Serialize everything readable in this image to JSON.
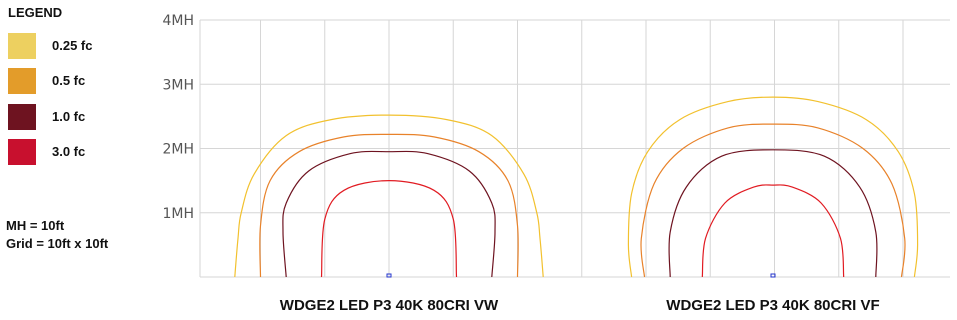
{
  "legend": {
    "title": "LEGEND",
    "items": [
      {
        "label": "0.25 fc",
        "color": "#EDD060"
      },
      {
        "label": "0.5 fc",
        "color": "#E39C2A"
      },
      {
        "label": "1.0 fc",
        "color": "#6E1320"
      },
      {
        "label": "3.0 fc",
        "color": "#C8102E"
      }
    ]
  },
  "notes": {
    "mh": "MH = 10ft",
    "grid": "Grid = 10ft x 10ft"
  },
  "chart_data": {
    "type": "isofootcandle contour",
    "y_ticks": [
      "4MH",
      "3MH",
      "2MH",
      "1MH"
    ],
    "ylim": [
      0,
      4
    ],
    "xlim_per_panel": [
      -3,
      3
    ],
    "grid": true,
    "legend_position": "left",
    "line_colors": {
      "0.25 fc": "#F2C12E",
      "0.5 fc": "#E8822A",
      "1.0 fc": "#6E1320",
      "3.0 fc": "#E11B22"
    },
    "fixture_marker_color": "#2233CC",
    "panels": [
      {
        "title": "WDGE2 LED P3 40K 80CRI VW",
        "contours": [
          {
            "level": "0.25 fc",
            "points": [
              [
                -2.4,
                0
              ],
              [
                -2.35,
                0.6
              ],
              [
                -2.3,
                1.0
              ],
              [
                -2.1,
                1.6
              ],
              [
                -1.6,
                2.2
              ],
              [
                -0.9,
                2.45
              ],
              [
                0,
                2.52
              ],
              [
                0.9,
                2.45
              ],
              [
                1.6,
                2.2
              ],
              [
                2.1,
                1.6
              ],
              [
                2.3,
                1.0
              ],
              [
                2.35,
                0.6
              ],
              [
                2.4,
                0
              ]
            ]
          },
          {
            "level": "0.5 fc",
            "points": [
              [
                -2.0,
                0
              ],
              [
                -2.0,
                0.8
              ],
              [
                -1.85,
                1.5
              ],
              [
                -1.4,
                1.95
              ],
              [
                -0.7,
                2.18
              ],
              [
                0,
                2.22
              ],
              [
                0.7,
                2.18
              ],
              [
                1.4,
                1.95
              ],
              [
                1.85,
                1.5
              ],
              [
                2.0,
                0.8
              ],
              [
                2.0,
                0
              ]
            ]
          },
          {
            "level": "1.0 fc",
            "points": [
              [
                -1.6,
                0
              ],
              [
                -1.65,
                0.7
              ],
              [
                -1.6,
                1.15
              ],
              [
                -1.25,
                1.65
              ],
              [
                -0.6,
                1.92
              ],
              [
                0,
                1.95
              ],
              [
                0.6,
                1.92
              ],
              [
                1.25,
                1.65
              ],
              [
                1.6,
                1.15
              ],
              [
                1.65,
                0.7
              ],
              [
                1.6,
                0
              ]
            ]
          },
          {
            "level": "3.0 fc",
            "points": [
              [
                -1.05,
                0
              ],
              [
                -1.0,
                0.9
              ],
              [
                -0.7,
                1.35
              ],
              [
                0,
                1.5
              ],
              [
                0.7,
                1.35
              ],
              [
                1.0,
                0.9
              ],
              [
                1.05,
                0
              ]
            ]
          }
        ]
      },
      {
        "title": "WDGE2 LED P3 40K 80CRI VF",
        "contours": [
          {
            "level": "0.25 fc",
            "points": [
              [
                -2.2,
                0
              ],
              [
                -2.25,
                0.5
              ],
              [
                -2.2,
                1.3
              ],
              [
                -1.95,
                1.95
              ],
              [
                -1.45,
                2.45
              ],
              [
                -0.7,
                2.73
              ],
              [
                0,
                2.8
              ],
              [
                0.7,
                2.73
              ],
              [
                1.45,
                2.45
              ],
              [
                1.95,
                1.95
              ],
              [
                2.2,
                1.3
              ],
              [
                2.25,
                0.5
              ],
              [
                2.2,
                0
              ]
            ]
          },
          {
            "level": "0.5 fc",
            "points": [
              [
                -2.0,
                0
              ],
              [
                -2.05,
                0.6
              ],
              [
                -1.85,
                1.45
              ],
              [
                -1.4,
                2.0
              ],
              [
                -0.7,
                2.32
              ],
              [
                0,
                2.38
              ],
              [
                0.7,
                2.32
              ],
              [
                1.4,
                2.0
              ],
              [
                1.85,
                1.45
              ],
              [
                2.05,
                0.6
              ],
              [
                2.0,
                0
              ]
            ]
          },
          {
            "level": "1.0 fc",
            "points": [
              [
                -1.6,
                0
              ],
              [
                -1.6,
                0.7
              ],
              [
                -1.35,
                1.4
              ],
              [
                -0.8,
                1.88
              ],
              [
                0,
                1.98
              ],
              [
                0.8,
                1.88
              ],
              [
                1.35,
                1.4
              ],
              [
                1.6,
                0.7
              ],
              [
                1.6,
                0
              ]
            ]
          },
          {
            "level": "3.0 fc",
            "points": [
              [
                -1.1,
                0
              ],
              [
                -1.05,
                0.6
              ],
              [
                -0.75,
                1.15
              ],
              [
                -0.3,
                1.4
              ],
              [
                0,
                1.43
              ],
              [
                0.3,
                1.4
              ],
              [
                0.75,
                1.15
              ],
              [
                1.05,
                0.6
              ],
              [
                1.1,
                0
              ]
            ]
          }
        ]
      }
    ]
  }
}
